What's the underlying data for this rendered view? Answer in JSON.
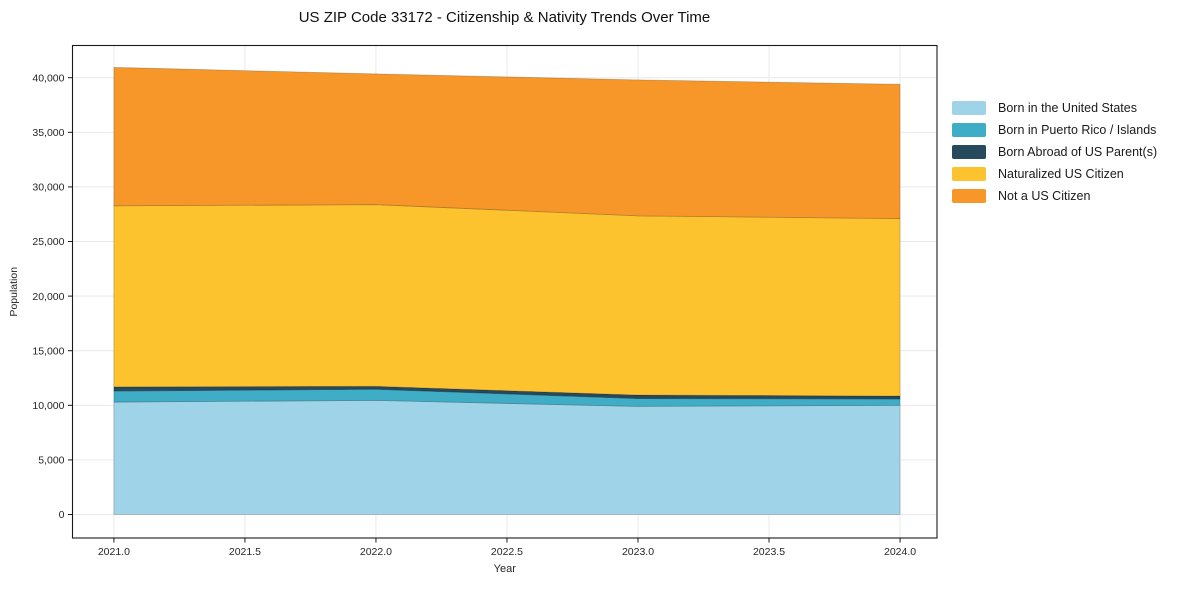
{
  "title": "US ZIP Code 33172 - Citizenship & Nativity Trends Over Time",
  "chart_data": {
    "type": "area",
    "stacked": true,
    "title": "US ZIP Code 33172 - Citizenship & Nativity Trends Over Time",
    "xlabel": "Year",
    "ylabel": "Population",
    "x": [
      2021,
      2022,
      2023,
      2024
    ],
    "series": [
      {
        "name": "Born in the United States",
        "color": "#9fd3e8",
        "values": [
          10300,
          10450,
          9900,
          10000
        ]
      },
      {
        "name": "Born in Puerto Rico / Islands",
        "color": "#3eadc5",
        "values": [
          1010,
          1020,
          720,
          580
        ]
      },
      {
        "name": "Born Abroad of US Parent(s)",
        "color": "#26495e",
        "values": [
          380,
          270,
          320,
          270
        ]
      },
      {
        "name": "Naturalized US Citizen",
        "color": "#fdc32e",
        "values": [
          16580,
          16640,
          16410,
          16250
        ]
      },
      {
        "name": "Not a US Citizen",
        "color": "#f79729",
        "values": [
          12680,
          11970,
          12450,
          12300
        ]
      }
    ],
    "stack_totals": [
      40950,
      40350,
      39800,
      39400
    ],
    "xticks": [
      2021.0,
      2021.5,
      2022.0,
      2022.5,
      2023.0,
      2023.5,
      2024.0
    ],
    "xtick_labels": [
      "2021.0",
      "2021.5",
      "2022.0",
      "2022.5",
      "2023.0",
      "2023.5",
      "2024.0"
    ],
    "yticks": [
      0,
      5000,
      10000,
      15000,
      20000,
      25000,
      30000,
      35000,
      40000
    ],
    "ytick_labels": [
      "0",
      "5,000",
      "10,000",
      "15,000",
      "20,000",
      "25,000",
      "30,000",
      "35,000",
      "40,000"
    ],
    "xlim": [
      2020.842,
      2024.141
    ],
    "ylim": [
      -2150,
      42950
    ],
    "grid": true,
    "grid_color": "#e9e9e9",
    "axis_color": "#1a1a1a",
    "legend_position": "right"
  }
}
